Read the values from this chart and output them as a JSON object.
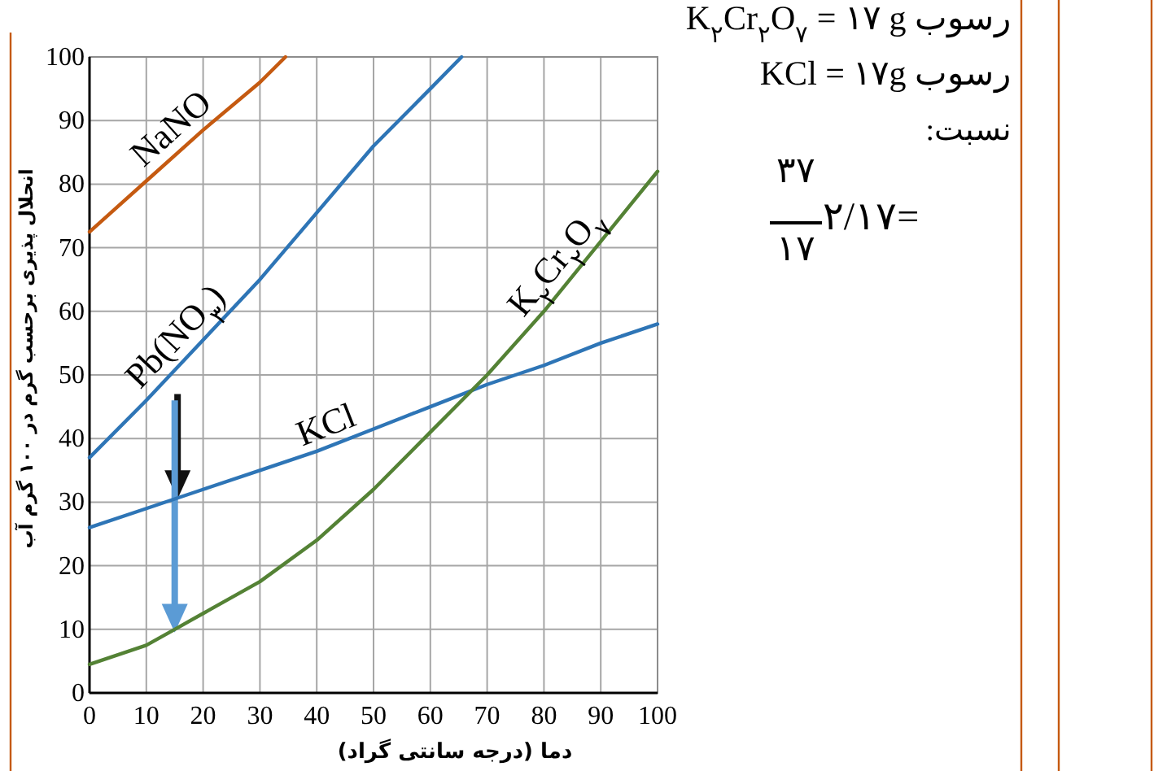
{
  "chart_data": {
    "type": "line",
    "xlabel": "دما  (درجه سانتی گراد)",
    "ylabel": "انحلال پذیری برحسب گرم در ۱۰۰ گرم آب",
    "xlim": [
      0,
      100
    ],
    "ylim": [
      0,
      100
    ],
    "xticks": [
      0,
      10,
      20,
      30,
      40,
      50,
      60,
      70,
      80,
      90,
      100
    ],
    "yticks": [
      0,
      10,
      20,
      30,
      40,
      50,
      60,
      70,
      80,
      90,
      100
    ],
    "grid": true,
    "marker": "none",
    "line_style": "solid",
    "series": [
      {
        "name": "NaNO",
        "color": "#c55a11",
        "x": [
          0,
          10,
          20,
          30,
          34.5
        ],
        "values": [
          72.5,
          80.5,
          88.5,
          96,
          100
        ]
      },
      {
        "name": "Pb(NO$_{۳}$)",
        "color": "#2e75b6",
        "x": [
          0,
          10,
          20,
          30,
          40,
          50,
          60,
          65.5
        ],
        "values": [
          37,
          46,
          55.5,
          65,
          75.5,
          86,
          95,
          100
        ]
      },
      {
        "name": "KCl",
        "color": "#2e75b6",
        "x": [
          0,
          10,
          20,
          30,
          40,
          50,
          60,
          70,
          80,
          90,
          100
        ],
        "values": [
          26,
          29,
          32,
          35,
          38,
          41.5,
          45,
          48.5,
          51.5,
          55,
          58
        ]
      },
      {
        "name": "K$_{۲}$Cr$_{۲}$O$_{۷}$",
        "color": "#548235",
        "x": [
          0,
          10,
          15,
          20,
          30,
          40,
          50,
          60,
          70,
          80,
          90,
          100
        ],
        "values": [
          4.5,
          7.5,
          10,
          12.5,
          17.5,
          24,
          32,
          41,
          50,
          60,
          71,
          82
        ]
      }
    ],
    "annotations": [
      "رسوب K$_{۲}$Cr$_{۲}$O$_{۷}$ = ۱۷ g",
      "رسوب KCl = ۱۷g",
      "نسبت:",
      "۳۷",
      "۱۷",
      "=۲/۱۷"
    ]
  }
}
